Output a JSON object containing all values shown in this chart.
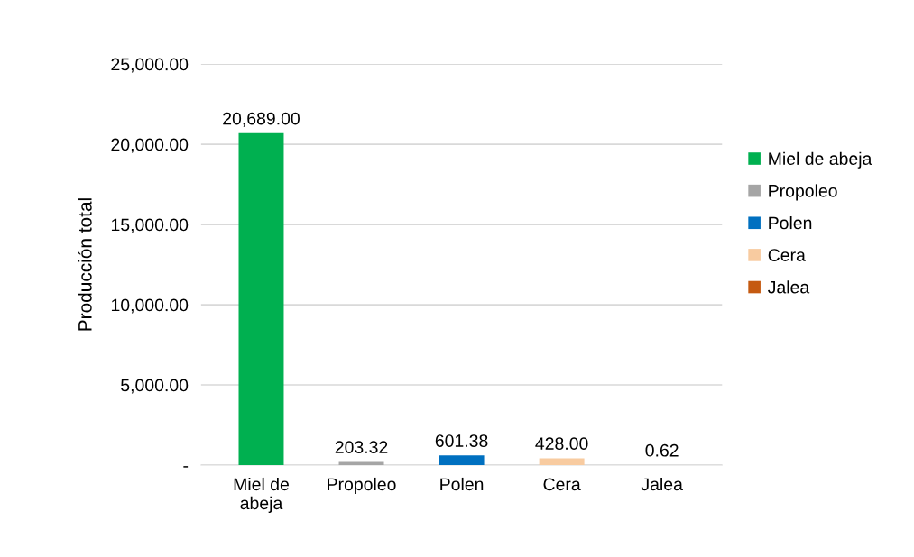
{
  "chart_data": {
    "type": "bar",
    "ylabel": "Producción total",
    "categories": [
      "Miel de abeja",
      "Propoleo",
      "Polen",
      "Cera",
      "Jalea"
    ],
    "series": [
      {
        "name": "Miel de abeja",
        "color": "#00b050",
        "values": [
          20689,
          null,
          null,
          null,
          null
        ],
        "value_labels": [
          "20,689.00",
          null,
          null,
          null,
          null
        ]
      },
      {
        "name": "Propoleo",
        "color": "#a5a5a5",
        "values": [
          null,
          203.32,
          null,
          null,
          null
        ],
        "value_labels": [
          null,
          "203.32",
          null,
          null,
          null
        ]
      },
      {
        "name": "Polen",
        "color": "#0070c0",
        "values": [
          null,
          null,
          601.38,
          null,
          null
        ],
        "value_labels": [
          null,
          null,
          "601.38",
          null,
          null
        ]
      },
      {
        "name": "Cera",
        "color": "#f8cba0",
        "values": [
          null,
          null,
          null,
          428,
          null
        ],
        "value_labels": [
          null,
          null,
          null,
          "428.00",
          null
        ]
      },
      {
        "name": "Jalea",
        "color": "#c55a11",
        "values": [
          null,
          null,
          null,
          null,
          0.62
        ],
        "value_labels": [
          null,
          null,
          null,
          null,
          "0.62"
        ]
      }
    ],
    "ylim": [
      0,
      25000
    ],
    "yticks": [
      {
        "value": 0,
        "label": "-"
      },
      {
        "value": 5000,
        "label": "5,000.00"
      },
      {
        "value": 10000,
        "label": "10,000.00"
      },
      {
        "value": 15000,
        "label": "15,000.00"
      },
      {
        "value": 20000,
        "label": "20,000.00"
      },
      {
        "value": 25000,
        "label": "25,000.00"
      }
    ],
    "grid": "y",
    "legend": "right"
  }
}
